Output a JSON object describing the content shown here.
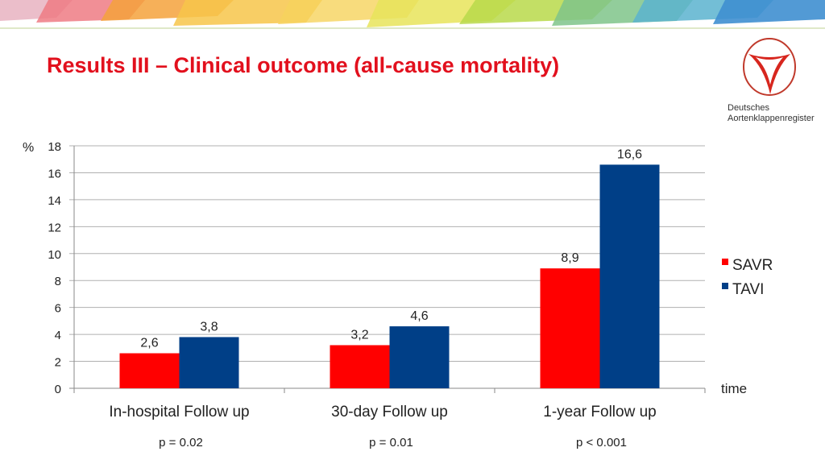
{
  "title": "Results III – Clinical outcome (all-cause mortality)",
  "logo": {
    "line1": "Deutsches",
    "line2": "Aortenklappenregister"
  },
  "colors": {
    "title": "#e2101d",
    "savr": "#ff0000",
    "tavi": "#003f87",
    "grid": "#b0b0b0",
    "text": "#222222"
  },
  "chart_data": {
    "type": "bar",
    "title": "",
    "ylabel": "%",
    "xlabel": "time",
    "ylim": [
      0,
      18
    ],
    "yticks": [
      0,
      2,
      4,
      6,
      8,
      10,
      12,
      14,
      16,
      18
    ],
    "grid": true,
    "legend_position": "right",
    "categories": [
      "In-hospital Follow up",
      "30-day Follow up",
      "1-year Follow up"
    ],
    "series": [
      {
        "name": "SAVR",
        "values": [
          2.6,
          3.2,
          8.9
        ],
        "labels": [
          "2,6",
          "3,2",
          "8,9"
        ],
        "color": "#ff0000"
      },
      {
        "name": "TAVI",
        "values": [
          3.8,
          4.6,
          16.6
        ],
        "labels": [
          "3,8",
          "4,6",
          "16,6"
        ],
        "color": "#003f87"
      }
    ],
    "annotations": [
      "p = 0.02",
      "p = 0.01",
      "p < 0.001"
    ]
  }
}
